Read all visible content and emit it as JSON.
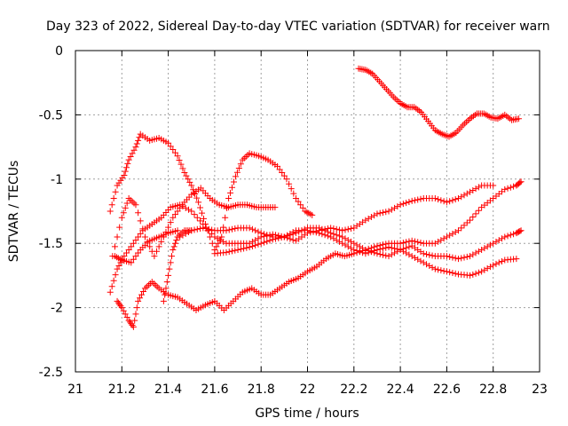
{
  "chart_data": {
    "type": "scatter",
    "title": "Day 323 of 2022, Sidereal Day-to-day VTEC variation (SDTVAR) for receiver warn",
    "xlabel": "GPS time / hours",
    "ylabel": "SDTVAR / TECUs",
    "xlim": [
      21,
      23
    ],
    "ylim": [
      -2.5,
      0
    ],
    "xticks": [
      21,
      21.2,
      21.4,
      21.6,
      21.8,
      22,
      22.2,
      22.4,
      22.6,
      22.8,
      23
    ],
    "xtick_labels": [
      "21",
      "21.2",
      "21.4",
      "21.6",
      "21.8",
      "22",
      "22.2",
      "22.4",
      "22.6",
      "22.8",
      "23"
    ],
    "yticks": [
      0,
      -0.5,
      -1,
      -1.5,
      -2,
      -2.5
    ],
    "ytick_labels": [
      "0",
      "-0.5",
      "-1",
      "-1.5",
      "-2",
      "-2.5"
    ],
    "grid": true,
    "marker": "+",
    "color": "#ff0000",
    "series": [
      {
        "name": "track-1",
        "points": [
          [
            22.22,
            -0.14
          ],
          [
            22.25,
            -0.15
          ],
          [
            22.28,
            -0.18
          ],
          [
            22.31,
            -0.24
          ],
          [
            22.34,
            -0.3
          ],
          [
            22.37,
            -0.36
          ],
          [
            22.4,
            -0.41
          ],
          [
            22.43,
            -0.44
          ],
          [
            22.46,
            -0.44
          ],
          [
            22.49,
            -0.48
          ],
          [
            22.52,
            -0.55
          ],
          [
            22.55,
            -0.62
          ],
          [
            22.58,
            -0.65
          ],
          [
            22.61,
            -0.67
          ],
          [
            22.64,
            -0.64
          ],
          [
            22.67,
            -0.58
          ],
          [
            22.7,
            -0.53
          ],
          [
            22.73,
            -0.49
          ],
          [
            22.76,
            -0.49
          ],
          [
            22.79,
            -0.52
          ],
          [
            22.82,
            -0.53
          ],
          [
            22.85,
            -0.5
          ],
          [
            22.88,
            -0.54
          ],
          [
            22.91,
            -0.53
          ]
        ]
      },
      {
        "name": "track-2",
        "points": [
          [
            21.15,
            -1.25
          ],
          [
            21.18,
            -1.05
          ],
          [
            21.21,
            -0.97
          ],
          [
            21.23,
            -0.85
          ],
          [
            21.26,
            -0.75
          ],
          [
            21.28,
            -0.65
          ],
          [
            21.32,
            -0.7
          ],
          [
            21.36,
            -0.68
          ],
          [
            21.4,
            -0.72
          ],
          [
            21.44,
            -0.82
          ],
          [
            21.47,
            -0.95
          ],
          [
            21.5,
            -1.05
          ],
          [
            21.53,
            -1.18
          ],
          [
            21.56,
            -1.35
          ],
          [
            21.6,
            -1.55
          ],
          [
            21.63,
            -1.45
          ],
          [
            21.66,
            -1.15
          ],
          [
            21.69,
            -0.98
          ],
          [
            21.72,
            -0.85
          ],
          [
            21.75,
            -0.8
          ],
          [
            21.79,
            -0.82
          ],
          [
            21.83,
            -0.85
          ],
          [
            21.87,
            -0.9
          ],
          [
            21.91,
            -1.0
          ],
          [
            21.95,
            -1.15
          ],
          [
            21.99,
            -1.25
          ],
          [
            22.02,
            -1.28
          ]
        ]
      },
      {
        "name": "track-3",
        "points": [
          [
            21.16,
            -1.6
          ],
          [
            21.2,
            -1.3
          ],
          [
            21.23,
            -1.15
          ],
          [
            21.26,
            -1.2
          ],
          [
            21.3,
            -1.45
          ],
          [
            21.34,
            -1.6
          ],
          [
            21.38,
            -1.45
          ],
          [
            21.42,
            -1.3
          ],
          [
            21.46,
            -1.2
          ],
          [
            21.5,
            -1.12
          ],
          [
            21.54,
            -1.07
          ],
          [
            21.58,
            -1.15
          ],
          [
            21.62,
            -1.2
          ],
          [
            21.66,
            -1.22
          ],
          [
            21.7,
            -1.2
          ],
          [
            21.74,
            -1.2
          ],
          [
            21.78,
            -1.22
          ],
          [
            21.82,
            -1.22
          ],
          [
            21.86,
            -1.22
          ]
        ]
      },
      {
        "name": "track-4",
        "points": [
          [
            21.15,
            -1.88
          ],
          [
            21.18,
            -1.7
          ],
          [
            21.21,
            -1.6
          ],
          [
            21.25,
            -1.5
          ],
          [
            21.29,
            -1.4
          ],
          [
            21.33,
            -1.35
          ],
          [
            21.37,
            -1.3
          ],
          [
            21.41,
            -1.22
          ],
          [
            21.45,
            -1.2
          ],
          [
            21.5,
            -1.25
          ],
          [
            21.55,
            -1.35
          ],
          [
            21.6,
            -1.45
          ],
          [
            21.65,
            -1.5
          ],
          [
            21.7,
            -1.5
          ],
          [
            21.75,
            -1.5
          ],
          [
            21.8,
            -1.45
          ],
          [
            21.85,
            -1.43
          ],
          [
            21.9,
            -1.45
          ],
          [
            21.95,
            -1.48
          ],
          [
            22.0,
            -1.42
          ],
          [
            22.05,
            -1.4
          ],
          [
            22.1,
            -1.38
          ],
          [
            22.15,
            -1.4
          ],
          [
            22.2,
            -1.38
          ],
          [
            22.25,
            -1.32
          ],
          [
            22.3,
            -1.27
          ],
          [
            22.35,
            -1.25
          ],
          [
            22.4,
            -1.2
          ],
          [
            22.45,
            -1.17
          ],
          [
            22.5,
            -1.15
          ],
          [
            22.55,
            -1.15
          ],
          [
            22.6,
            -1.18
          ],
          [
            22.65,
            -1.15
          ],
          [
            22.7,
            -1.1
          ],
          [
            22.75,
            -1.05
          ],
          [
            22.8,
            -1.05
          ]
        ]
      },
      {
        "name": "track-5",
        "points": [
          [
            21.18,
            -1.95
          ],
          [
            21.2,
            -2.0
          ],
          [
            21.23,
            -2.1
          ],
          [
            21.25,
            -2.15
          ],
          [
            21.27,
            -1.95
          ],
          [
            21.3,
            -1.85
          ],
          [
            21.33,
            -1.8
          ],
          [
            21.36,
            -1.85
          ],
          [
            21.4,
            -1.9
          ],
          [
            21.44,
            -1.92
          ],
          [
            21.48,
            -1.97
          ],
          [
            21.52,
            -2.02
          ],
          [
            21.56,
            -1.98
          ],
          [
            21.6,
            -1.95
          ],
          [
            21.64,
            -2.02
          ],
          [
            21.68,
            -1.95
          ],
          [
            21.72,
            -1.88
          ],
          [
            21.76,
            -1.85
          ],
          [
            21.8,
            -1.9
          ],
          [
            21.84,
            -1.9
          ],
          [
            21.88,
            -1.85
          ],
          [
            21.92,
            -1.8
          ],
          [
            21.96,
            -1.77
          ],
          [
            22.0,
            -1.72
          ],
          [
            22.04,
            -1.68
          ],
          [
            22.08,
            -1.62
          ],
          [
            22.12,
            -1.58
          ],
          [
            22.16,
            -1.6
          ],
          [
            22.2,
            -1.58
          ],
          [
            22.25,
            -1.55
          ],
          [
            22.3,
            -1.52
          ],
          [
            22.35,
            -1.5
          ],
          [
            22.4,
            -1.5
          ],
          [
            22.45,
            -1.48
          ],
          [
            22.5,
            -1.5
          ],
          [
            22.55,
            -1.5
          ],
          [
            22.6,
            -1.45
          ],
          [
            22.65,
            -1.4
          ],
          [
            22.7,
            -1.32
          ],
          [
            22.75,
            -1.22
          ],
          [
            22.8,
            -1.15
          ],
          [
            22.85,
            -1.08
          ],
          [
            22.9,
            -1.05
          ],
          [
            22.92,
            -1.02
          ]
        ]
      },
      {
        "name": "track-6",
        "points": [
          [
            21.45,
            -1.45
          ],
          [
            21.5,
            -1.4
          ],
          [
            21.55,
            -1.38
          ],
          [
            21.6,
            -1.4
          ],
          [
            21.65,
            -1.4
          ],
          [
            21.7,
            -1.38
          ],
          [
            21.75,
            -1.38
          ],
          [
            21.8,
            -1.42
          ],
          [
            21.85,
            -1.45
          ],
          [
            21.9,
            -1.45
          ],
          [
            21.95,
            -1.42
          ],
          [
            22.0,
            -1.38
          ],
          [
            22.05,
            -1.38
          ],
          [
            22.1,
            -1.42
          ],
          [
            22.15,
            -1.45
          ],
          [
            22.2,
            -1.5
          ],
          [
            22.25,
            -1.55
          ],
          [
            22.3,
            -1.58
          ],
          [
            22.35,
            -1.6
          ],
          [
            22.4,
            -1.55
          ],
          [
            22.45,
            -1.52
          ],
          [
            22.5,
            -1.58
          ],
          [
            22.55,
            -1.6
          ],
          [
            22.6,
            -1.6
          ],
          [
            22.65,
            -1.62
          ],
          [
            22.7,
            -1.6
          ],
          [
            22.75,
            -1.55
          ],
          [
            22.8,
            -1.5
          ],
          [
            22.85,
            -1.45
          ],
          [
            22.9,
            -1.42
          ],
          [
            22.92,
            -1.4
          ]
        ]
      },
      {
        "name": "track-7",
        "points": [
          [
            21.6,
            -1.58
          ],
          [
            21.65,
            -1.57
          ],
          [
            21.7,
            -1.55
          ],
          [
            21.75,
            -1.53
          ],
          [
            21.8,
            -1.5
          ],
          [
            21.85,
            -1.47
          ],
          [
            21.9,
            -1.45
          ],
          [
            21.95,
            -1.4
          ],
          [
            22.0,
            -1.4
          ],
          [
            22.05,
            -1.42
          ],
          [
            22.1,
            -1.45
          ],
          [
            22.15,
            -1.5
          ],
          [
            22.2,
            -1.55
          ],
          [
            22.25,
            -1.58
          ],
          [
            22.3,
            -1.55
          ],
          [
            22.35,
            -1.53
          ],
          [
            22.4,
            -1.55
          ],
          [
            22.45,
            -1.6
          ],
          [
            22.5,
            -1.65
          ],
          [
            22.55,
            -1.7
          ],
          [
            22.6,
            -1.72
          ],
          [
            22.65,
            -1.74
          ],
          [
            22.7,
            -1.75
          ],
          [
            22.75,
            -1.72
          ],
          [
            22.8,
            -1.67
          ],
          [
            22.85,
            -1.63
          ],
          [
            22.9,
            -1.62
          ]
        ]
      },
      {
        "name": "track-8",
        "points": [
          [
            21.38,
            -1.95
          ],
          [
            21.4,
            -1.75
          ],
          [
            21.42,
            -1.55
          ],
          [
            21.44,
            -1.45
          ],
          [
            21.47,
            -1.4
          ],
          [
            21.5,
            -1.4
          ]
        ]
      },
      {
        "name": "track-9",
        "points": [
          [
            21.17,
            -1.6
          ],
          [
            21.2,
            -1.63
          ],
          [
            21.24,
            -1.65
          ],
          [
            21.28,
            -1.55
          ],
          [
            21.32,
            -1.48
          ],
          [
            21.36,
            -1.45
          ],
          [
            21.4,
            -1.42
          ],
          [
            21.44,
            -1.4
          ]
        ]
      }
    ]
  }
}
